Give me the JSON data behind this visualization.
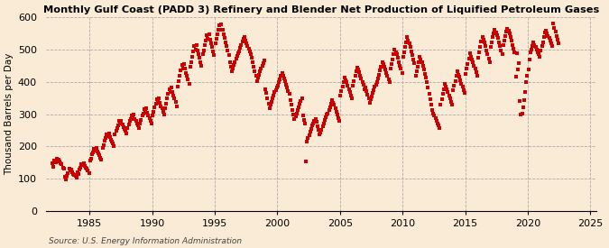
{
  "title": "Monthly Gulf Coast (PADD 3) Refinery and Blender Net Production of Liquified Petroleum Gases",
  "ylabel": "Thousand Barrels per Day",
  "source": "Source: U.S. Energy Information Administration",
  "background_color": "#faebd7",
  "marker_color": "#cc0000",
  "ylim": [
    0,
    600
  ],
  "yticks": [
    0,
    100,
    200,
    300,
    400,
    500,
    600
  ],
  "xlim": [
    1981.5,
    2025.5
  ],
  "xticks": [
    1985,
    1990,
    1995,
    2000,
    2005,
    2010,
    2015,
    2020,
    2025
  ],
  "start_year": 1982,
  "start_month": 1,
  "values": [
    148,
    138,
    155,
    150,
    162,
    158,
    160,
    152,
    148,
    145,
    135,
    130,
    105,
    98,
    110,
    118,
    130,
    125,
    128,
    120,
    115,
    112,
    108,
    102,
    120,
    115,
    128,
    135,
    145,
    142,
    148,
    140,
    135,
    130,
    125,
    118,
    155,
    162,
    175,
    180,
    192,
    188,
    195,
    185,
    178,
    172,
    165,
    158,
    195,
    205,
    218,
    225,
    238,
    232,
    240,
    228,
    220,
    215,
    208,
    200,
    238,
    248,
    258,
    265,
    278,
    272,
    280,
    268,
    260,
    255,
    248,
    240,
    258,
    268,
    278,
    285,
    295,
    290,
    298,
    285,
    278,
    272,
    265,
    258,
    272,
    282,
    295,
    302,
    315,
    308,
    318,
    305,
    295,
    288,
    280,
    272,
    295,
    308,
    322,
    332,
    345,
    338,
    348,
    335,
    325,
    318,
    308,
    298,
    318,
    332,
    348,
    362,
    378,
    368,
    382,
    368,
    358,
    348,
    338,
    325,
    385,
    402,
    418,
    435,
    452,
    442,
    455,
    440,
    428,
    418,
    408,
    395,
    448,
    462,
    478,
    495,
    512,
    500,
    515,
    498,
    485,
    475,
    462,
    450,
    485,
    498,
    515,
    528,
    545,
    532,
    548,
    530,
    518,
    508,
    495,
    482,
    518,
    532,
    548,
    562,
    575,
    562,
    578,
    560,
    548,
    535,
    522,
    510,
    498,
    482,
    462,
    448,
    432,
    442,
    452,
    462,
    472,
    480,
    488,
    495,
    505,
    515,
    525,
    532,
    540,
    528,
    520,
    512,
    502,
    495,
    485,
    475,
    462,
    448,
    432,
    418,
    402,
    412,
    422,
    432,
    442,
    450,
    458,
    465,
    378,
    365,
    348,
    332,
    318,
    328,
    338,
    348,
    358,
    368,
    375,
    382,
    388,
    398,
    408,
    418,
    428,
    418,
    410,
    402,
    392,
    382,
    372,
    362,
    342,
    328,
    312,
    298,
    285,
    292,
    302,
    312,
    322,
    332,
    340,
    348,
    295,
    282,
    270,
    152,
    215,
    225,
    235,
    245,
    255,
    265,
    272,
    280,
    285,
    275,
    262,
    250,
    238,
    242,
    252,
    262,
    272,
    282,
    290,
    298,
    302,
    312,
    322,
    332,
    342,
    335,
    328,
    318,
    308,
    298,
    288,
    278,
    358,
    372,
    385,
    400,
    412,
    405,
    398,
    388,
    378,
    368,
    358,
    348,
    388,
    402,
    418,
    432,
    445,
    438,
    430,
    420,
    410,
    400,
    390,
    378,
    382,
    372,
    360,
    348,
    335,
    345,
    355,
    365,
    375,
    385,
    392,
    400,
    410,
    422,
    435,
    448,
    462,
    455,
    448,
    438,
    428,
    418,
    408,
    398,
    442,
    455,
    470,
    485,
    500,
    492,
    485,
    475,
    462,
    450,
    440,
    428,
    478,
    492,
    508,
    522,
    538,
    528,
    520,
    508,
    495,
    482,
    470,
    458,
    418,
    432,
    448,
    462,
    478,
    468,
    460,
    450,
    438,
    425,
    412,
    400,
    382,
    362,
    345,
    328,
    312,
    302,
    295,
    288,
    280,
    272,
    265,
    258,
    328,
    345,
    362,
    378,
    395,
    385,
    378,
    368,
    358,
    348,
    338,
    328,
    375,
    388,
    402,
    418,
    432,
    422,
    415,
    405,
    395,
    385,
    375,
    365,
    425,
    440,
    455,
    472,
    488,
    478,
    470,
    460,
    450,
    440,
    430,
    420,
    475,
    490,
    508,
    525,
    540,
    530,
    522,
    510,
    498,
    485,
    472,
    460,
    508,
    522,
    538,
    550,
    562,
    552,
    545,
    535,
    522,
    510,
    498,
    485,
    515,
    528,
    542,
    555,
    565,
    558,
    550,
    540,
    528,
    515,
    502,
    490,
    415,
    488,
    438,
    458,
    340,
    298,
    302,
    322,
    342,
    368,
    398,
    418,
    438,
    468,
    490,
    500,
    512,
    522,
    515,
    508,
    500,
    492,
    485,
    478,
    498,
    510,
    522,
    538,
    552,
    558,
    550,
    542,
    535,
    528,
    520,
    512,
    580,
    568,
    555,
    542,
    530,
    518
  ]
}
